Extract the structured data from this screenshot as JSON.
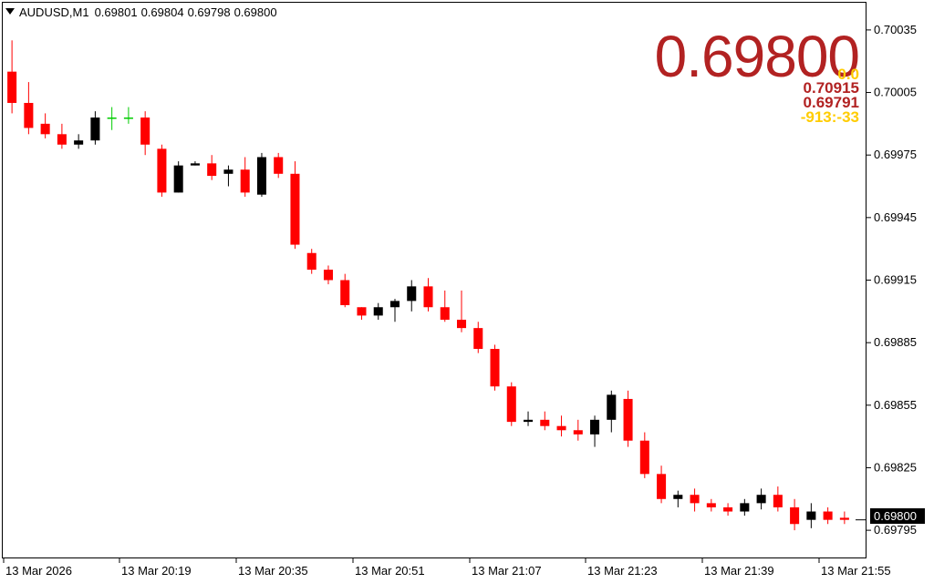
{
  "header": {
    "symbol": "AUDUSD,M1",
    "open": "0.69801",
    "high": "0.69804",
    "low": "0.69798",
    "close": "0.69800"
  },
  "overlay": {
    "big_price": "0.69800",
    "zero": "0.0",
    "high": "0.70915",
    "low": "0.69791",
    "spread": "-913:-33"
  },
  "price_tag": "0.69800",
  "colors": {
    "bull": "#000000",
    "bear": "#ff0000",
    "doji": "#00cc00",
    "accent": "#b22222",
    "gold": "#ffcc00"
  },
  "chart_data": {
    "type": "candlestick",
    "ylim": [
      0.69785,
      0.70045
    ],
    "y_ticks": [
      "0.70035",
      "0.70005",
      "0.69975",
      "0.69945",
      "0.69915",
      "0.69885",
      "0.69855",
      "0.69825",
      "0.69795"
    ],
    "x_ticks": [
      "13 Mar 2026",
      "13 Mar 20:19",
      "13 Mar 20:35",
      "13 Mar 20:51",
      "13 Mar 21:07",
      "13 Mar 21:23",
      "13 Mar 21:39",
      "13 Mar 21:55"
    ],
    "candles": [
      [
        0.70015,
        0.7003,
        0.69995,
        0.7
      ],
      [
        0.7,
        0.7001,
        0.69985,
        0.69988
      ],
      [
        0.6999,
        0.69995,
        0.69983,
        0.69985
      ],
      [
        0.69985,
        0.6999,
        0.69978,
        0.6998
      ],
      [
        0.6998,
        0.69985,
        0.69978,
        0.69982
      ],
      [
        0.69982,
        0.69996,
        0.6998,
        0.69993
      ],
      [
        0.69993,
        0.69998,
        0.69987,
        0.69993
      ],
      [
        0.69993,
        0.69998,
        0.6999,
        0.69993
      ],
      [
        0.69993,
        0.69996,
        0.69975,
        0.6998
      ],
      [
        0.69978,
        0.6998,
        0.69955,
        0.69957
      ],
      [
        0.69957,
        0.69972,
        0.69957,
        0.6997
      ],
      [
        0.6997,
        0.69972,
        0.6997,
        0.69971
      ],
      [
        0.69971,
        0.69975,
        0.69963,
        0.69965
      ],
      [
        0.69966,
        0.6997,
        0.6996,
        0.69968
      ],
      [
        0.69968,
        0.69974,
        0.69955,
        0.69957
      ],
      [
        0.69956,
        0.69976,
        0.69955,
        0.69974
      ],
      [
        0.69974,
        0.69976,
        0.69964,
        0.69966
      ],
      [
        0.69966,
        0.69972,
        0.6993,
        0.69932
      ],
      [
        0.69928,
        0.6993,
        0.69918,
        0.6992
      ],
      [
        0.6992,
        0.69922,
        0.69913,
        0.69915
      ],
      [
        0.69915,
        0.69918,
        0.69902,
        0.69903
      ],
      [
        0.69902,
        0.69902,
        0.69896,
        0.69898
      ],
      [
        0.69898,
        0.69904,
        0.69896,
        0.69902
      ],
      [
        0.69902,
        0.69906,
        0.69895,
        0.69905
      ],
      [
        0.69905,
        0.69915,
        0.699,
        0.69912
      ],
      [
        0.69912,
        0.69916,
        0.699,
        0.69902
      ],
      [
        0.69902,
        0.6991,
        0.69895,
        0.69896
      ],
      [
        0.69896,
        0.6991,
        0.6989,
        0.69892
      ],
      [
        0.69892,
        0.69895,
        0.6988,
        0.69882
      ],
      [
        0.69882,
        0.69884,
        0.69862,
        0.69864
      ],
      [
        0.69864,
        0.69866,
        0.69845,
        0.69847
      ],
      [
        0.69847,
        0.69852,
        0.69845,
        0.69848
      ],
      [
        0.69848,
        0.69852,
        0.69843,
        0.69845
      ],
      [
        0.69845,
        0.6985,
        0.6984,
        0.69843
      ],
      [
        0.69843,
        0.69848,
        0.69838,
        0.69841
      ],
      [
        0.69841,
        0.6985,
        0.69835,
        0.69848
      ],
      [
        0.69848,
        0.69862,
        0.69842,
        0.6986
      ],
      [
        0.69858,
        0.69862,
        0.69835,
        0.69838
      ],
      [
        0.69838,
        0.69842,
        0.6982,
        0.69822
      ],
      [
        0.69822,
        0.69826,
        0.69808,
        0.6981
      ],
      [
        0.6981,
        0.69814,
        0.69806,
        0.69812
      ],
      [
        0.69812,
        0.69815,
        0.69804,
        0.69808
      ],
      [
        0.69808,
        0.6981,
        0.69804,
        0.69806
      ],
      [
        0.69806,
        0.69808,
        0.69802,
        0.69804
      ],
      [
        0.69804,
        0.6981,
        0.69802,
        0.69808
      ],
      [
        0.69808,
        0.69815,
        0.69805,
        0.69812
      ],
      [
        0.69812,
        0.69816,
        0.69804,
        0.69806
      ],
      [
        0.69806,
        0.6981,
        0.69795,
        0.69798
      ],
      [
        0.698,
        0.69808,
        0.69796,
        0.69804
      ],
      [
        0.69804,
        0.69806,
        0.69798,
        0.698
      ],
      [
        0.69801,
        0.69804,
        0.69798,
        0.698
      ]
    ]
  }
}
